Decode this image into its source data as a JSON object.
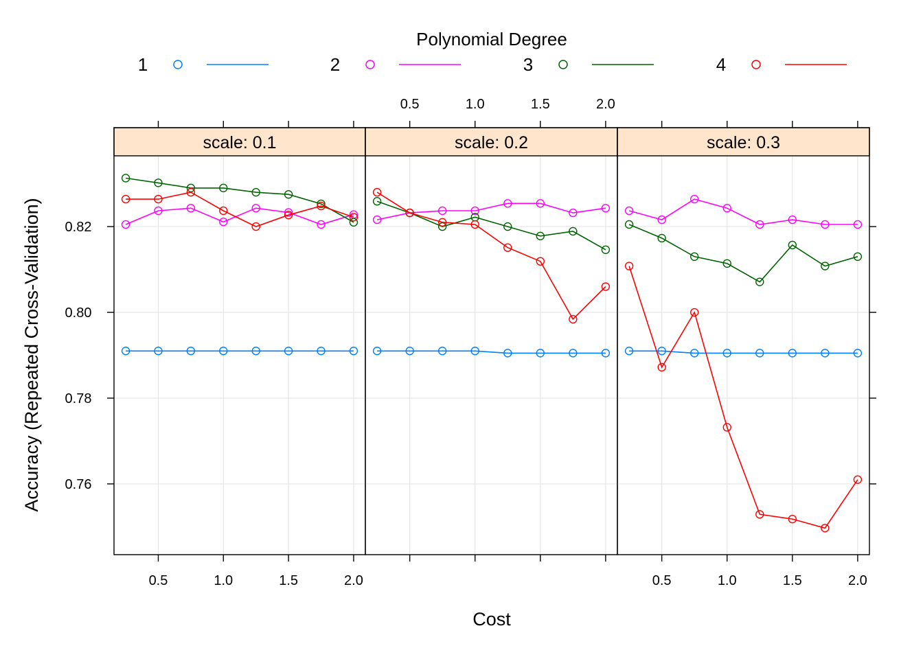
{
  "chart_data": {
    "type": "line",
    "xlabel": "Cost",
    "ylabel": "Accuracy (Repeated Cross-Validation)",
    "legend": {
      "title": "Polynomial Degree",
      "position": "top",
      "entries": [
        "1",
        "2",
        "3",
        "4"
      ]
    },
    "x": [
      0.25,
      0.5,
      0.75,
      1.0,
      1.25,
      1.5,
      1.75,
      2.0
    ],
    "x_ticks": [
      0.5,
      1.0,
      1.5,
      2.0
    ],
    "x_tick_labels": [
      "0.5",
      "1.0",
      "1.5",
      "2.0"
    ],
    "y_ticks": [
      0.76,
      0.78,
      0.8,
      0.82
    ],
    "y_tick_labels": [
      "0.76",
      "0.78",
      "0.80",
      "0.82"
    ],
    "xlim": [
      0.16,
      2.09
    ],
    "ylim": [
      0.7435,
      0.8365
    ],
    "grid": true,
    "colors": {
      "1": "#0080ff",
      "2": "#ff00ff",
      "3": "#006400",
      "4": "#ff0000",
      "strip_bg": "#ffe5cc"
    },
    "panels": [
      {
        "strip": "scale: 0.1",
        "series": [
          {
            "name": "1",
            "values": [
              0.791,
              0.791,
              0.791,
              0.791,
              0.791,
              0.791,
              0.791,
              0.791
            ]
          },
          {
            "name": "2",
            "values": [
              0.8205,
              0.8237,
              0.8243,
              0.8211,
              0.8243,
              0.8233,
              0.8205,
              0.8228
            ]
          },
          {
            "name": "3",
            "values": [
              0.8313,
              0.8302,
              0.829,
              0.829,
              0.828,
              0.8275,
              0.8253,
              0.821
            ]
          },
          {
            "name": "4",
            "values": [
              0.8264,
              0.8264,
              0.828,
              0.8237,
              0.82,
              0.8227,
              0.8248,
              0.8222
            ]
          }
        ]
      },
      {
        "strip": "scale: 0.2",
        "series": [
          {
            "name": "1",
            "values": [
              0.791,
              0.791,
              0.791,
              0.791,
              0.7905,
              0.7905,
              0.7905,
              0.7905
            ]
          },
          {
            "name": "2",
            "values": [
              0.8216,
              0.8232,
              0.8237,
              0.8237,
              0.8254,
              0.8254,
              0.8232,
              0.8243
            ]
          },
          {
            "name": "3",
            "values": [
              0.8259,
              0.8232,
              0.82,
              0.8222,
              0.82,
              0.8178,
              0.8189,
              0.8146
            ]
          },
          {
            "name": "4",
            "values": [
              0.828,
              0.8232,
              0.821,
              0.8205,
              0.8151,
              0.8119,
              0.7984,
              0.806
            ]
          }
        ]
      },
      {
        "strip": "scale: 0.3",
        "series": [
          {
            "name": "1",
            "values": [
              0.791,
              0.791,
              0.7905,
              0.7905,
              0.7905,
              0.7905,
              0.7905,
              0.7905
            ]
          },
          {
            "name": "2",
            "values": [
              0.8237,
              0.8216,
              0.8264,
              0.8243,
              0.8205,
              0.8216,
              0.8205,
              0.8205
            ]
          },
          {
            "name": "3",
            "values": [
              0.8205,
              0.8173,
              0.813,
              0.8114,
              0.8071,
              0.8157,
              0.8108,
              0.813
            ]
          },
          {
            "name": "4",
            "values": [
              0.8108,
              0.7872,
              0.8,
              0.7732,
              0.7529,
              0.7518,
              0.7497,
              0.761
            ]
          }
        ]
      }
    ]
  }
}
